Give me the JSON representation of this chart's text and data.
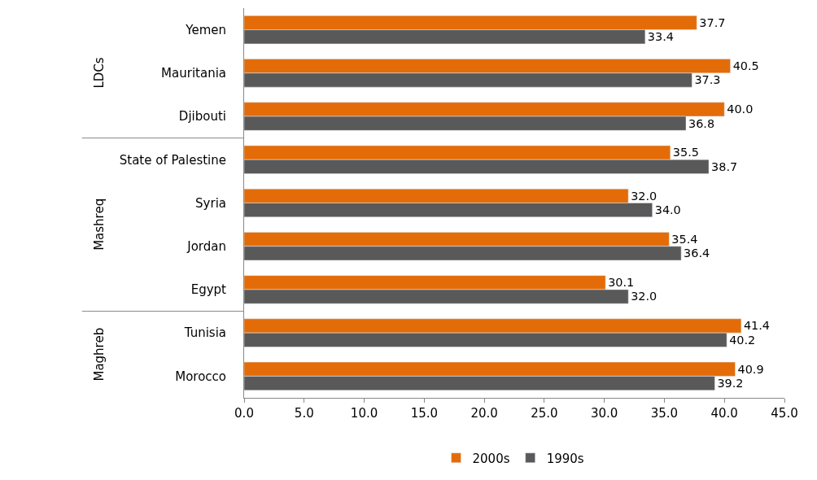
{
  "chart_data": {
    "type": "bar",
    "orientation": "horizontal",
    "categories": [
      "Yemen",
      "Mauritania",
      "Djibouti",
      "State of Palestine",
      "Syria",
      "Jordan",
      "Egypt",
      "Tunisia",
      "Morocco"
    ],
    "series": [
      {
        "name": "2000s",
        "color": "#e36c09",
        "values": [
          37.7,
          40.5,
          40.0,
          35.5,
          32.0,
          35.4,
          30.1,
          41.4,
          40.9
        ],
        "value_labels": [
          "37.7",
          "40.5",
          "40.0",
          "35.5",
          "32.0",
          "35.4",
          "30.1",
          "41.4",
          "40.9"
        ]
      },
      {
        "name": "1990s",
        "color": "#595959",
        "values": [
          33.4,
          37.3,
          36.8,
          38.7,
          34.0,
          36.4,
          32.0,
          40.2,
          39.2
        ],
        "value_labels": [
          "33.4",
          "37.3",
          "36.8",
          "38.7",
          "34.0",
          "36.4",
          "32.0",
          "40.2",
          "39.2"
        ]
      }
    ],
    "xlim": [
      0,
      45
    ],
    "xticks": [
      {
        "value": 0,
        "label": "0.0"
      },
      {
        "value": 5,
        "label": "5.0"
      },
      {
        "value": 10,
        "label": "10.0"
      },
      {
        "value": 15,
        "label": "15.0"
      },
      {
        "value": 20,
        "label": "20.0"
      },
      {
        "value": 25,
        "label": "25.0"
      },
      {
        "value": 30,
        "label": "30.0"
      },
      {
        "value": 35,
        "label": "35.0"
      },
      {
        "value": 40,
        "label": "40.0"
      },
      {
        "value": 45,
        "label": "45.0"
      }
    ],
    "annotations": [
      "LDCs",
      "Mashreq",
      "Maghreb"
    ],
    "grid": false,
    "legend": "bottom"
  }
}
